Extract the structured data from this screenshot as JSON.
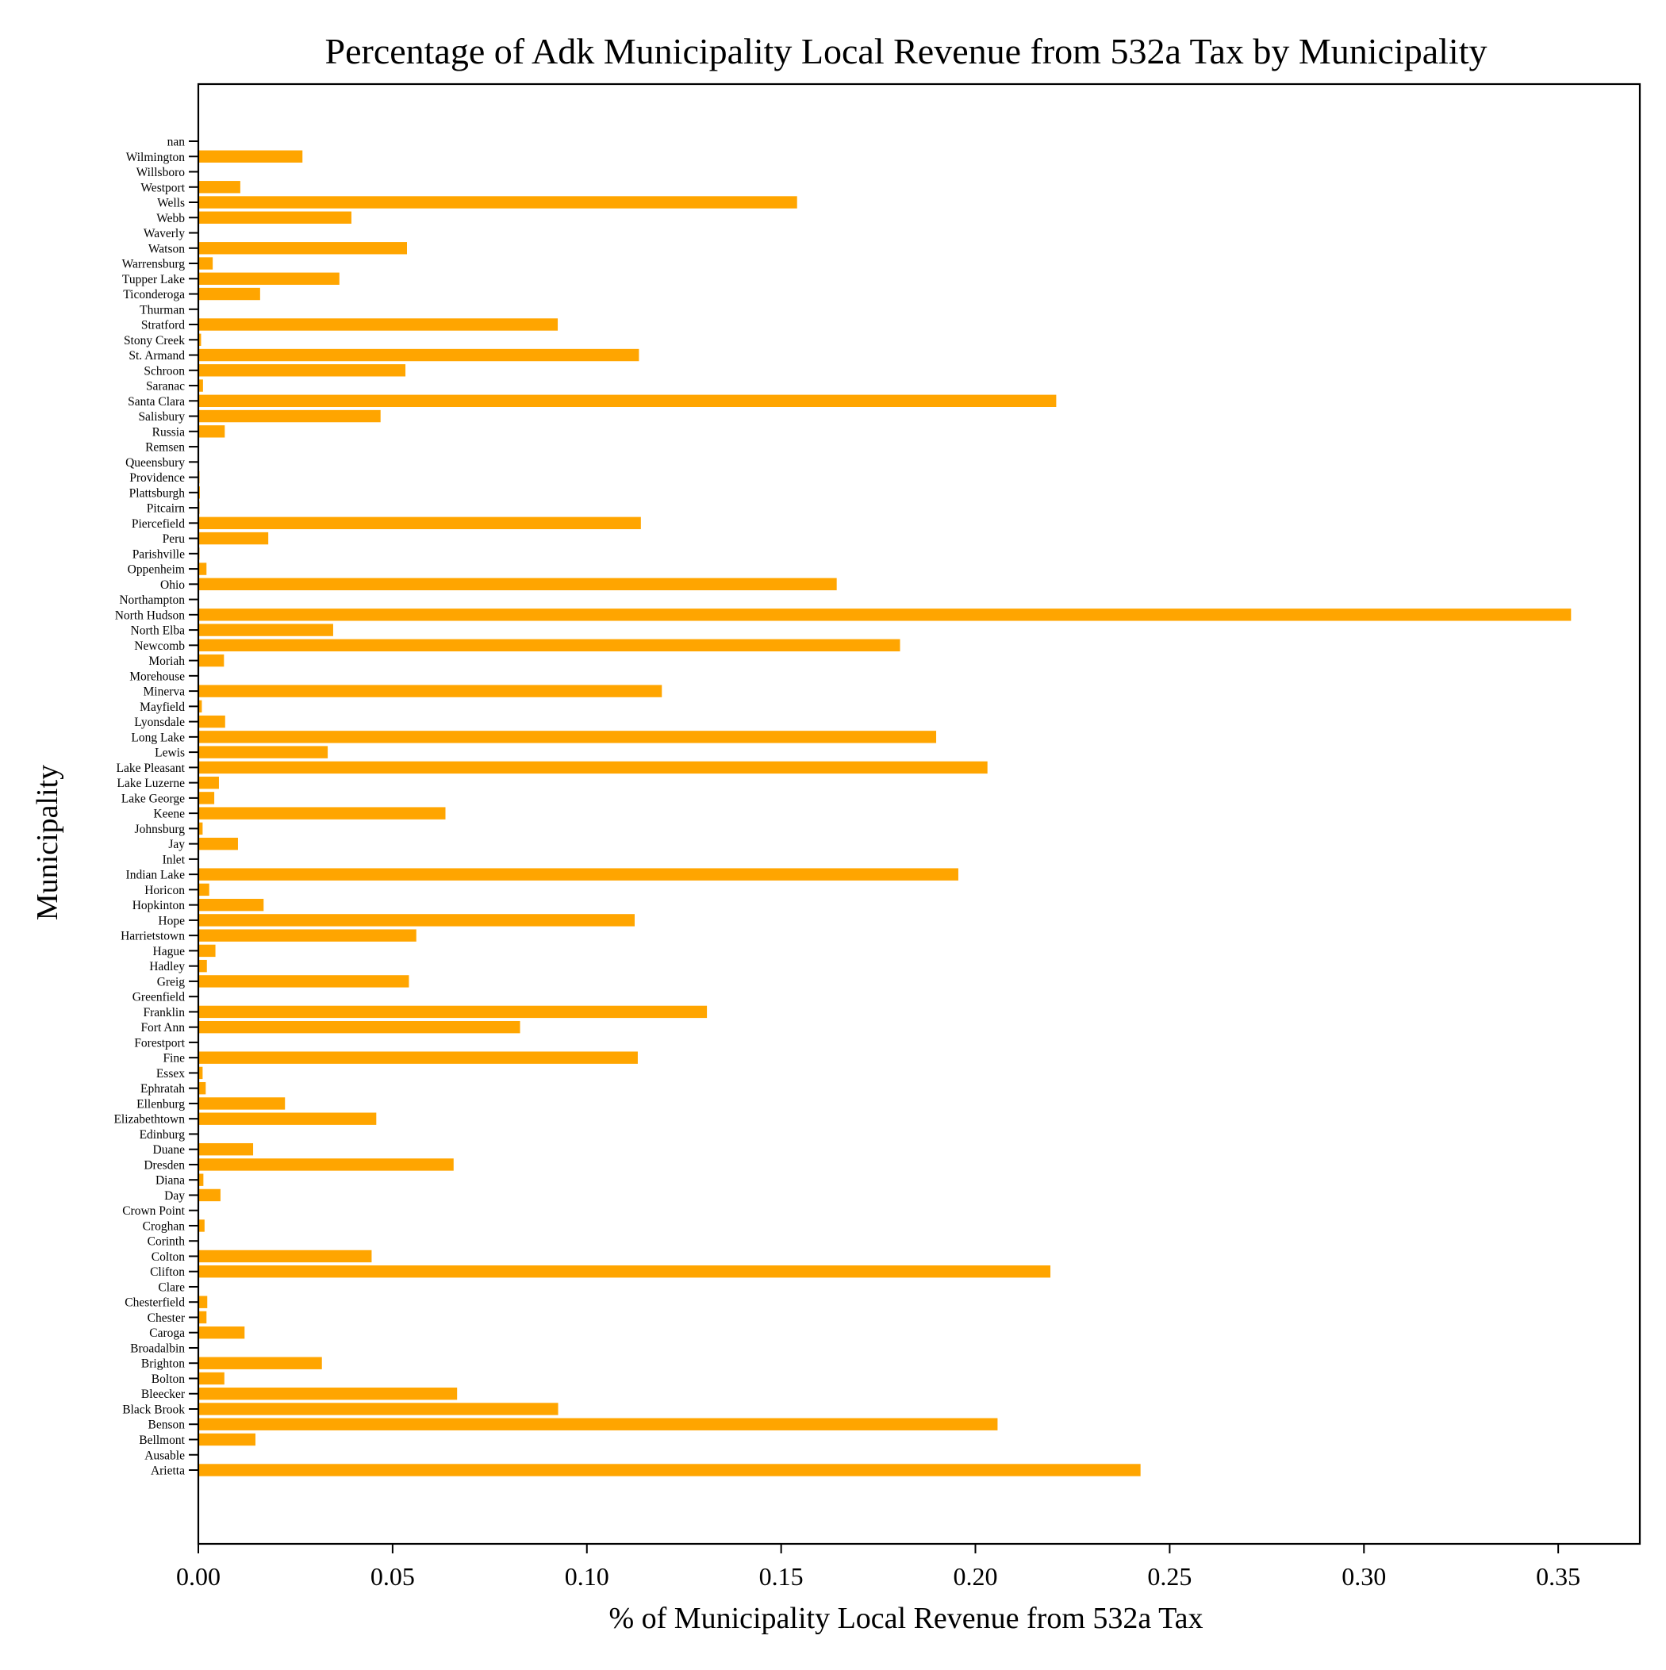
{
  "chart_data": {
    "type": "bar",
    "orientation": "horizontal",
    "title": "Percentage of Adk Municipality Local Revenue from 532a Tax by Municipality",
    "xlabel": "% of Municipality Local Revenue from 532a Tax",
    "ylabel": "Municipality",
    "xlim": [
      0,
      0.371
    ],
    "xticks": [
      "0.00",
      "0.05",
      "0.10",
      "0.15",
      "0.20",
      "0.25",
      "0.30",
      "0.35"
    ],
    "grid": false,
    "bar_color": "#FFA500",
    "categories": [
      "Arietta",
      "Ausable",
      "Bellmont",
      "Benson",
      "Black Brook",
      "Bleecker",
      "Bolton",
      "Brighton",
      "Broadalbin",
      "Caroga",
      "Chester",
      "Chesterfield",
      "Clare",
      "Clifton",
      "Colton",
      "Corinth",
      "Croghan",
      "Crown Point",
      "Day",
      "Diana",
      "Dresden",
      "Duane",
      "Edinburg",
      "Elizabethtown",
      "Ellenburg",
      "Ephratah",
      "Essex",
      "Fine",
      "Forestport",
      "Fort Ann",
      "Franklin",
      "Greenfield",
      "Greig",
      "Hadley",
      "Hague",
      "Harrietstown",
      "Hope",
      "Hopkinton",
      "Horicon",
      "Indian Lake",
      "Inlet",
      "Jay",
      "Johnsburg",
      "Keene",
      "Lake George",
      "Lake Luzerne",
      "Lake Pleasant",
      "Lewis",
      "Long Lake",
      "Lyonsdale",
      "Mayfield",
      "Minerva",
      "Morehouse",
      "Moriah",
      "Newcomb",
      "North Elba",
      "North Hudson",
      "Northampton",
      "Ohio",
      "Oppenheim",
      "Parishville",
      "Peru",
      "Piercefield",
      "Pitcairn",
      "Plattsburgh",
      "Providence",
      "Queensbury",
      "Remsen",
      "Russia",
      "Salisbury",
      "Santa Clara",
      "Saranac",
      "Schroon",
      "St. Armand",
      "Stony Creek",
      "Stratford",
      "Thurman",
      "Ticonderoga",
      "Tupper Lake",
      "Warrensburg",
      "Watson",
      "Waverly",
      "Webb",
      "Wells",
      "Westport",
      "Willsboro",
      "Wilmington",
      "nan"
    ],
    "values": [
      0.2425,
      0,
      0.0147,
      0.2057,
      0.0926,
      0.0666,
      0.0067,
      0.0318,
      0,
      0.0119,
      0.0021,
      0.0023,
      0,
      0.2193,
      0.0446,
      0,
      0.0016,
      0,
      0.0057,
      0.0013,
      0.0657,
      0.0141,
      0,
      0.0458,
      0.0223,
      0.0019,
      0.0011,
      0.1131,
      0,
      0.0828,
      0.1309,
      0,
      0.0542,
      0.0022,
      0.0044,
      0.0561,
      0.1123,
      0.0168,
      0.0028,
      0.1956,
      0,
      0.0102,
      0.0011,
      0.0636,
      0.0041,
      0.0053,
      0.2031,
      0.0333,
      0.1899,
      0.0069,
      0.0009,
      0.1193,
      0,
      0.0066,
      0.1806,
      0.0347,
      0.3533,
      0,
      0.1643,
      0.0021,
      0.0003,
      0.018,
      0.1139,
      0.0003,
      0.0004,
      0.0003,
      0.0002,
      0.0002,
      0.0068,
      0.0469,
      0.2208,
      0.0012,
      0.0533,
      0.1134,
      0.0007,
      0.0925,
      0,
      0.0159,
      0.0363,
      0.0037,
      0.0537,
      0,
      0.0394,
      0.1541,
      0.0108,
      0,
      0.0268,
      0
    ]
  }
}
